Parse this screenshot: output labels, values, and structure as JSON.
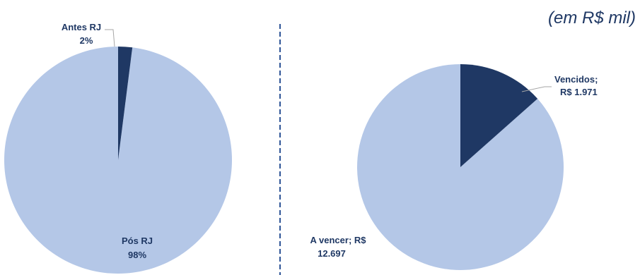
{
  "subtitle": "(em R$ mil)",
  "colors": {
    "dark": "#1f3864",
    "light": "#b4c7e7",
    "divider": "#2f5597",
    "leader": "#a6a6a6"
  },
  "chart_data": [
    {
      "type": "pie",
      "slices": [
        {
          "label": "Antes RJ",
          "value_label": "2%",
          "value": 2,
          "color": "#1f3864"
        },
        {
          "label": "Pós RJ",
          "value_label": "98%",
          "value": 98,
          "color": "#b4c7e7"
        }
      ]
    },
    {
      "type": "pie",
      "slices": [
        {
          "label": "Vencidos;",
          "value_label": "R$ 1.971",
          "value": 1971,
          "color": "#1f3864"
        },
        {
          "label": "A vencer;  R$",
          "value_label": "12.697",
          "value": 12697,
          "color": "#b4c7e7"
        }
      ]
    }
  ]
}
